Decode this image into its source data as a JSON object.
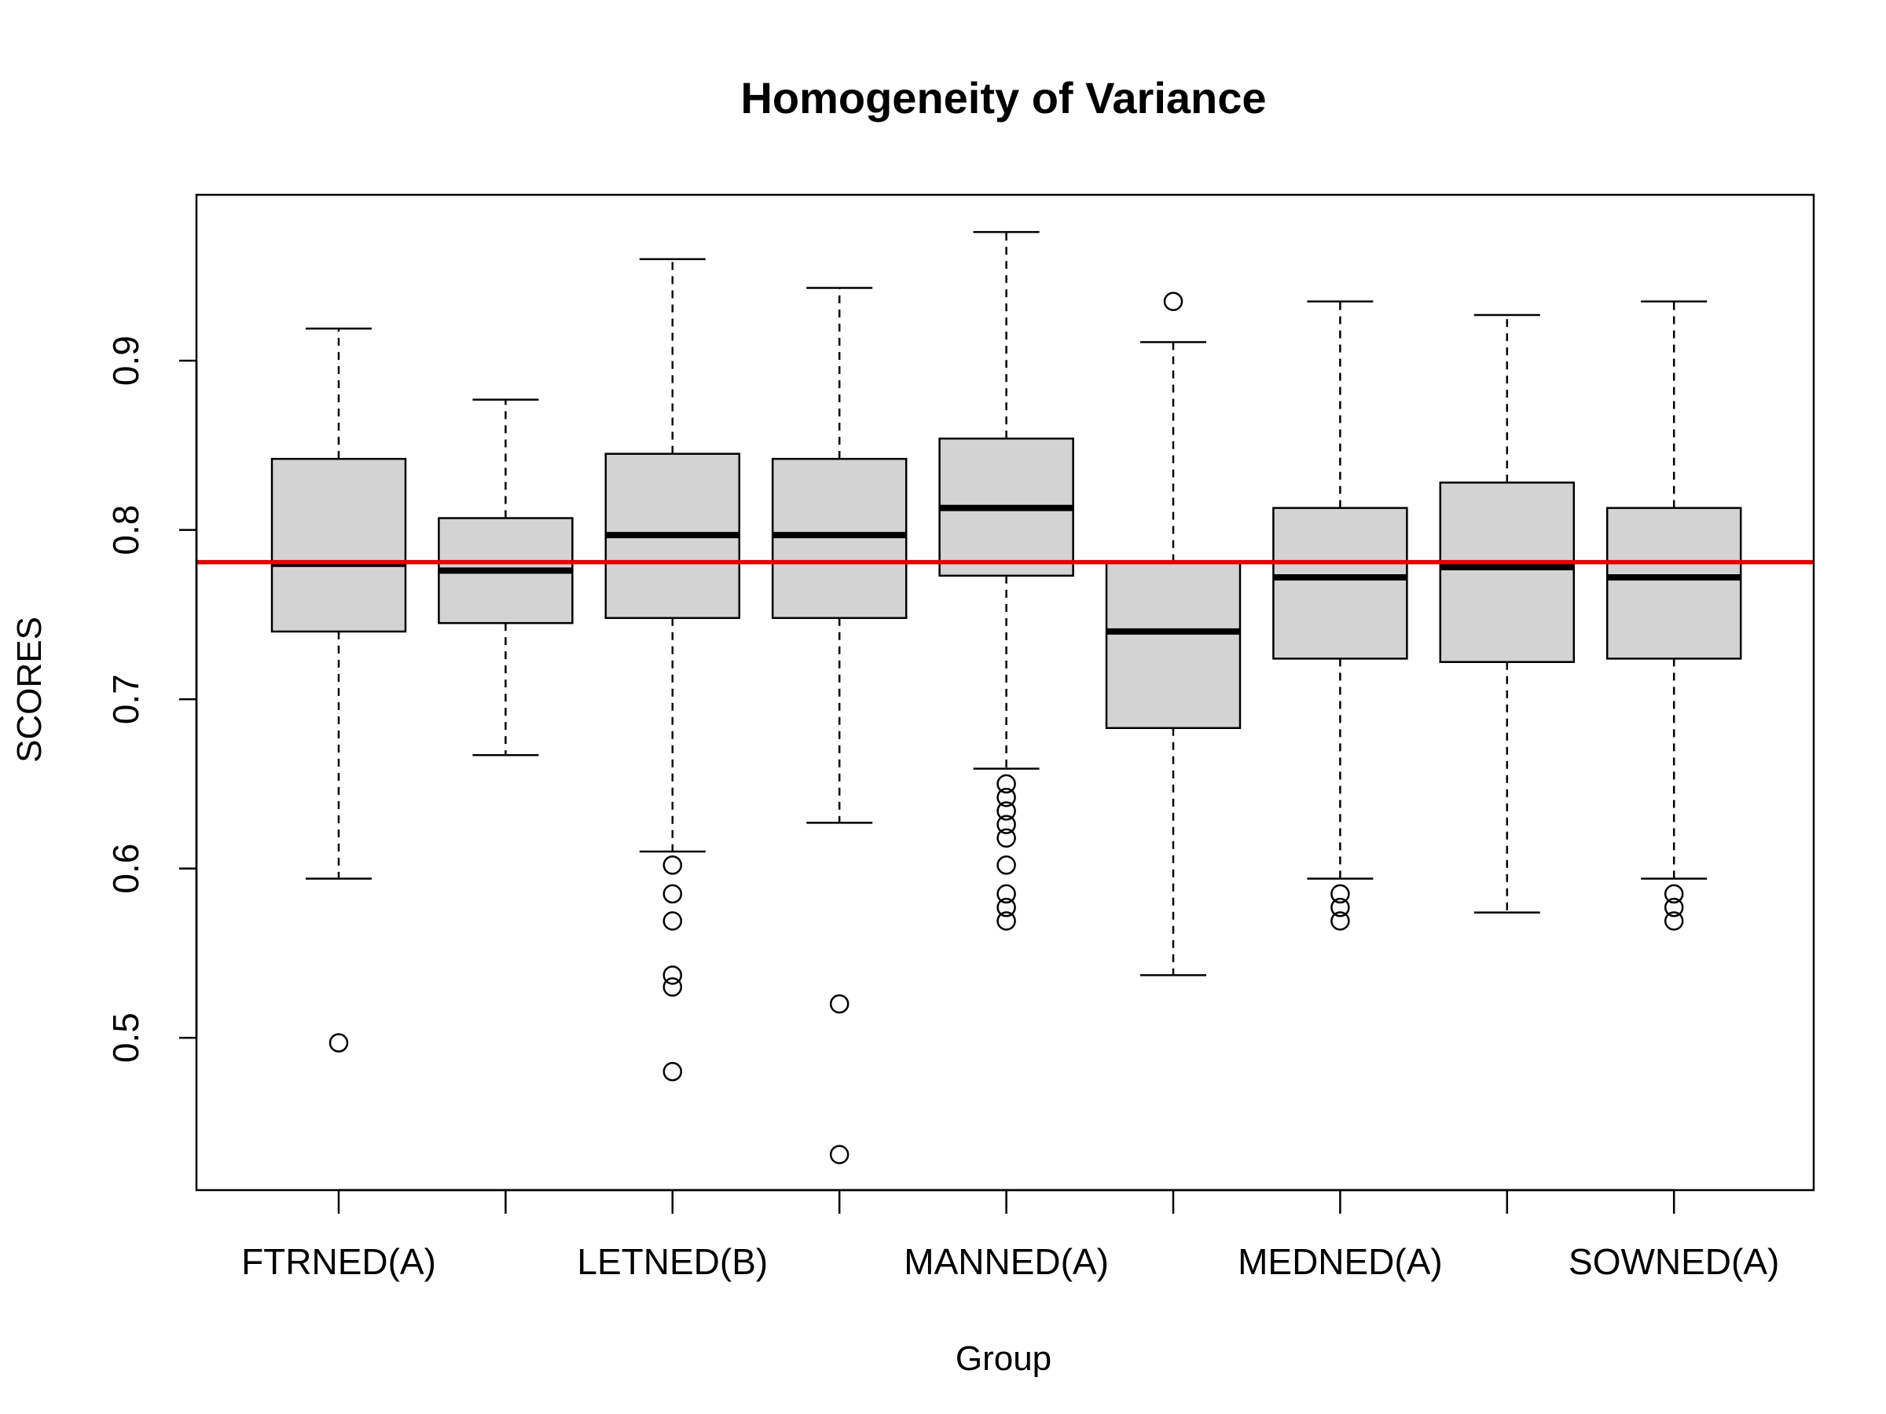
{
  "chart_data": {
    "type": "box",
    "title": "Homogeneity of Variance",
    "xlabel": "Group",
    "ylabel": "SCORES",
    "ylim": [
      0.41,
      0.998
    ],
    "yticks": [
      0.5,
      0.6,
      0.7,
      0.8,
      0.9
    ],
    "x_tick_labels": [
      "FTRNED(A)",
      "",
      "LETNED(B)",
      "",
      "MANNED(A)",
      "",
      "MEDNED(A)",
      "",
      "SOWNED(A)"
    ],
    "reference_line": {
      "y": 0.781,
      "color": "#e00000"
    },
    "box_fill": "#d3d3d3",
    "groups": [
      {
        "whisker_low": 0.594,
        "q1": 0.74,
        "median": 0.78,
        "q3": 0.842,
        "whisker_high": 0.919,
        "outliers": [
          0.497
        ]
      },
      {
        "whisker_low": 0.667,
        "q1": 0.745,
        "median": 0.776,
        "q3": 0.807,
        "whisker_high": 0.877,
        "outliers": []
      },
      {
        "whisker_low": 0.61,
        "q1": 0.748,
        "median": 0.797,
        "q3": 0.845,
        "whisker_high": 0.96,
        "outliers": [
          0.602,
          0.585,
          0.569,
          0.537,
          0.53,
          0.48
        ]
      },
      {
        "whisker_low": 0.627,
        "q1": 0.748,
        "median": 0.797,
        "q3": 0.842,
        "whisker_high": 0.943,
        "outliers": [
          0.52,
          0.431
        ]
      },
      {
        "whisker_low": 0.659,
        "q1": 0.773,
        "median": 0.813,
        "q3": 0.854,
        "whisker_high": 0.976,
        "outliers": [
          0.65,
          0.642,
          0.634,
          0.626,
          0.618,
          0.602,
          0.585,
          0.577,
          0.569
        ]
      },
      {
        "whisker_low": 0.537,
        "q1": 0.683,
        "median": 0.74,
        "q3": 0.781,
        "whisker_high": 0.911,
        "outliers": [
          0.935
        ]
      },
      {
        "whisker_low": 0.594,
        "q1": 0.724,
        "median": 0.772,
        "q3": 0.813,
        "whisker_high": 0.935,
        "outliers": [
          0.585,
          0.577,
          0.569
        ]
      },
      {
        "whisker_low": 0.574,
        "q1": 0.722,
        "median": 0.778,
        "q3": 0.828,
        "whisker_high": 0.927,
        "outliers": []
      },
      {
        "whisker_low": 0.594,
        "q1": 0.724,
        "median": 0.772,
        "q3": 0.813,
        "whisker_high": 0.935,
        "outliers": [
          0.585,
          0.577,
          0.569
        ]
      }
    ]
  }
}
